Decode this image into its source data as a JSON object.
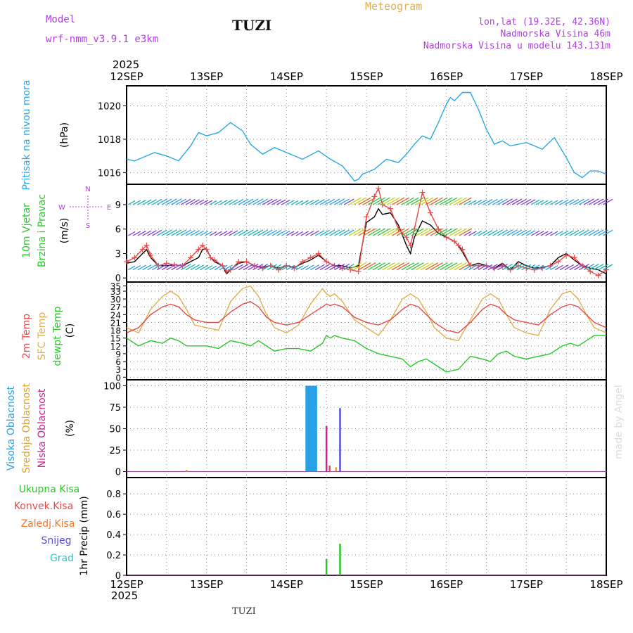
{
  "header": {
    "model_label": "Model",
    "model_name": "wrf-nmm_v3.9.1 e3km",
    "station": "TUZI",
    "meteogram": "Meteogram",
    "lonlat": "lon,lat (19.32E, 42.36N)",
    "altitude": "Nadmorska Visina 46m",
    "model_altitude": "Nadmorska Visina u modelu 143.131m",
    "watermark": "made by Angel",
    "footer_station": "TUZI"
  },
  "colors": {
    "pressure": "#2aa8e6",
    "tmax": "#e0b050",
    "t2m": "#e84848",
    "dewpt": "#28c828",
    "wind_speed": "#000000",
    "gust": "#e84848",
    "high_cloud": "#28a0e6",
    "mid_cloud": "#e0a030",
    "low_cloud": "#d22090",
    "total_precip": "#28c828",
    "conv_precip": "#e84848",
    "frozen_precip": "#f07828",
    "snow": "#5050e0",
    "hail": "#28c8c8",
    "wind_label": "#b040e0"
  },
  "time_axis": {
    "year": "2025",
    "days": [
      "12SEP",
      "13SEP",
      "14SEP",
      "15SEP",
      "16SEP",
      "17SEP",
      "18SEP"
    ]
  },
  "chart_data": [
    {
      "type": "line",
      "id": "pressure",
      "ylabel_lines": [
        "Pritisak na nivou mora",
        "(hPa)"
      ],
      "ticks": [
        "1016",
        "1018",
        "1020"
      ],
      "ylim": [
        1015.3,
        1021.2
      ],
      "x_days": [
        0,
        0.1,
        0.2,
        0.35,
        0.5,
        0.65,
        0.8,
        0.9,
        1.0,
        1.15,
        1.3,
        1.45,
        1.55,
        1.7,
        1.85,
        2.0,
        2.2,
        2.4,
        2.55,
        2.7,
        2.85,
        2.9,
        2.95,
        3.1,
        3.25,
        3.4,
        3.5,
        3.6,
        3.7,
        3.8,
        3.9,
        4.0,
        4.05,
        4.1,
        4.2,
        4.3,
        4.4,
        4.5,
        4.6,
        4.7,
        4.8,
        5.0,
        5.2,
        5.35,
        5.5,
        5.6,
        5.7,
        5.8,
        5.9,
        6.0
      ],
      "series": [
        {
          "name": "pressure",
          "color_key": "pressure",
          "values": [
            1016.8,
            1016.7,
            1016.9,
            1017.2,
            1017.0,
            1016.7,
            1017.6,
            1018.4,
            1018.2,
            1018.4,
            1019.0,
            1018.5,
            1017.7,
            1017.1,
            1017.5,
            1017.2,
            1016.8,
            1017.3,
            1016.8,
            1016.4,
            1015.5,
            1015.6,
            1015.9,
            1016.2,
            1016.8,
            1016.6,
            1017.1,
            1017.7,
            1018.2,
            1018.0,
            1019.0,
            1020.1,
            1020.5,
            1020.3,
            1020.8,
            1020.8,
            1019.8,
            1018.6,
            1017.7,
            1017.9,
            1017.6,
            1017.8,
            1017.4,
            1018.1,
            1016.9,
            1016.0,
            1015.7,
            1016.1,
            1016.1,
            1015.9
          ]
        }
      ]
    },
    {
      "type": "line",
      "id": "wind",
      "ylabel_lines": [
        "10m Vjetar",
        "Brzina i Pravac",
        "(m/s)"
      ],
      "compass": [
        "N",
        "W",
        "E",
        "S"
      ],
      "ticks": [
        "0",
        "3",
        "6",
        "9"
      ],
      "ylim": [
        -0.5,
        11.5
      ],
      "barb_levels": [
        1.0,
        5.2,
        9.0
      ],
      "x_days": [
        0,
        0.1,
        0.2,
        0.25,
        0.3,
        0.4,
        0.5,
        0.6,
        0.7,
        0.8,
        0.9,
        0.95,
        1.0,
        1.05,
        1.1,
        1.2,
        1.25,
        1.3,
        1.4,
        1.5,
        1.6,
        1.7,
        1.8,
        1.9,
        2.0,
        2.1,
        2.2,
        2.3,
        2.4,
        2.5,
        2.6,
        2.7,
        2.8,
        2.9,
        3.0,
        3.1,
        3.15,
        3.2,
        3.3,
        3.4,
        3.5,
        3.55,
        3.6,
        3.7,
        3.8,
        3.9,
        4.0,
        4.1,
        4.15,
        4.2,
        4.3,
        4.4,
        4.5,
        4.6,
        4.7,
        4.8,
        4.9,
        5.0,
        5.1,
        5.2,
        5.3,
        5.4,
        5.5,
        5.6,
        5.7,
        5.8,
        5.9,
        6.0
      ],
      "series": [
        {
          "name": "wind speed",
          "color_key": "wind_speed",
          "values": [
            1.8,
            2.0,
            3.0,
            3.5,
            2.5,
            1.5,
            1.5,
            1.6,
            1.5,
            2.0,
            2.5,
            3.5,
            3.6,
            2.5,
            2.0,
            1.5,
            0.5,
            1.0,
            1.8,
            2.0,
            1.5,
            1.3,
            1.5,
            1.2,
            1.5,
            1.3,
            1.8,
            2.2,
            2.8,
            2.0,
            1.5,
            1.5,
            1.2,
            1.5,
            6.8,
            7.5,
            8.5,
            7.8,
            8.0,
            6.5,
            4.0,
            3.0,
            5.0,
            7.0,
            6.5,
            5.5,
            5.0,
            4.5,
            4.0,
            3.2,
            1.5,
            1.8,
            1.5,
            1.2,
            1.8,
            1.0,
            2.0,
            1.5,
            1.2,
            1.3,
            1.5,
            2.5,
            3.0,
            2.2,
            1.5,
            1.2,
            1.0,
            0.5
          ]
        },
        {
          "name": "gust",
          "color_key": "gust",
          "values": [
            2.0,
            2.5,
            3.5,
            4.0,
            2.8,
            1.5,
            1.8,
            1.6,
            1.5,
            2.5,
            3.5,
            4.0,
            3.5,
            2.5,
            2.2,
            1.5,
            0.8,
            1.0,
            2.0,
            2.0,
            1.5,
            1.2,
            1.5,
            1.0,
            1.5,
            1.2,
            2.0,
            2.5,
            3.0,
            2.0,
            1.5,
            1.2,
            1.0,
            0.8,
            7.5,
            10.0,
            11.0,
            9.0,
            8.5,
            6.0,
            5.0,
            4.0,
            6.0,
            10.5,
            8.0,
            6.0,
            5.0,
            4.5,
            4.0,
            3.5,
            1.5,
            1.5,
            1.5,
            1.2,
            1.5,
            1.0,
            1.5,
            1.2,
            1.0,
            1.2,
            1.5,
            2.0,
            2.8,
            2.5,
            1.5,
            0.8,
            0.3,
            1.0
          ]
        }
      ]
    },
    {
      "type": "line",
      "id": "temperature",
      "ylabel_lines": [
        "2m Temp",
        "SFC Temp",
        "dewpt Temp",
        "(C)"
      ],
      "ticks": [
        "0",
        "3",
        "6",
        "9",
        "12",
        "15",
        "18",
        "21",
        "24",
        "27",
        "30",
        "33",
        "35"
      ],
      "ylim": [
        -1,
        36.5
      ],
      "x_days": [
        0,
        0.15,
        0.3,
        0.45,
        0.55,
        0.65,
        0.75,
        0.85,
        1.0,
        1.15,
        1.3,
        1.45,
        1.55,
        1.65,
        1.75,
        1.85,
        2.0,
        2.15,
        2.3,
        2.45,
        2.5,
        2.55,
        2.6,
        2.7,
        2.85,
        3.0,
        3.15,
        3.3,
        3.45,
        3.55,
        3.65,
        3.75,
        3.85,
        4.0,
        4.15,
        4.3,
        4.45,
        4.55,
        4.65,
        4.75,
        4.85,
        5.0,
        5.15,
        5.3,
        5.45,
        5.55,
        5.65,
        5.75,
        5.85,
        6.0
      ],
      "series": [
        {
          "name": "SFC Temp",
          "color_key": "tmax",
          "values": [
            19,
            17,
            26,
            31,
            33,
            31,
            26,
            20,
            19,
            18,
            29,
            34,
            35,
            31,
            24,
            19,
            17,
            20,
            28,
            34,
            32,
            31,
            32,
            29,
            22,
            19,
            16,
            22,
            30,
            32,
            30,
            25,
            19,
            15,
            14,
            22,
            30,
            32,
            30,
            24,
            19,
            17,
            16,
            26,
            32,
            33,
            30,
            24,
            19,
            17
          ]
        },
        {
          "name": "2m Temp",
          "color_key": "t2m",
          "values": [
            17,
            19,
            24,
            27,
            28,
            27,
            24,
            22,
            21,
            21,
            25,
            28,
            29,
            27,
            23,
            21,
            20,
            21,
            24,
            27,
            28,
            27.5,
            28,
            27,
            23,
            21,
            20,
            22,
            26,
            28,
            27,
            24,
            21,
            18,
            17,
            21,
            26,
            28,
            27,
            24,
            22,
            21,
            20,
            24,
            27,
            28,
            27,
            24,
            21,
            19
          ]
        },
        {
          "name": "dewpt Temp",
          "color_key": "dewpt",
          "values": [
            15,
            12,
            14,
            13,
            15,
            14,
            12,
            12,
            12,
            11,
            14,
            13,
            12,
            14,
            12,
            10,
            11,
            11,
            10,
            13,
            16,
            15,
            16,
            15,
            14,
            11,
            9,
            8,
            7,
            4,
            6,
            7,
            5,
            2,
            3,
            8,
            7,
            6,
            9,
            10,
            8,
            7,
            8,
            9,
            12,
            13,
            12,
            14,
            16,
            16
          ]
        }
      ]
    },
    {
      "type": "bar",
      "id": "cloud",
      "ylabel_lines": [
        "Visoka Oblacnost",
        "Srednja Oblacnost",
        "Niska Oblacnost",
        "(%)"
      ],
      "ticks": [
        "0",
        "25",
        "50",
        "75",
        "100"
      ],
      "ylim": [
        -7,
        107
      ],
      "series": [
        {
          "name": "Visoka Oblacnost",
          "color_key": "high_cloud",
          "x_days": [
            2.25,
            2.27,
            2.29,
            2.31,
            2.33,
            2.35,
            2.37
          ],
          "values": [
            100,
            100,
            100,
            100,
            100,
            100,
            100
          ]
        },
        {
          "name": "Srednja Oblacnost",
          "color_key": "mid_cloud",
          "x_days": [
            0.75,
            2.62
          ],
          "values": [
            2,
            5
          ]
        },
        {
          "name": "Niska Oblacnost",
          "color_key": "low_cloud",
          "x_days": [
            2.5
          ],
          "values": [
            53
          ]
        },
        {
          "name": "red",
          "color_key": "t2m",
          "x_days": [
            2.54
          ],
          "values": [
            7
          ]
        },
        {
          "name": "blue",
          "color_key": "snow",
          "x_days": [
            2.67
          ],
          "values": [
            74
          ]
        }
      ]
    },
    {
      "type": "bar",
      "id": "precip",
      "ylabel_lines": [
        "1hr Precip (mm)"
      ],
      "legend": [
        "Ukupna Kisa",
        "Konvek.Kisa",
        "Zaledj.Kisa",
        "Snijeg",
        "Grad"
      ],
      "ticks": [
        "0",
        "0.2",
        "0.4",
        "0.6",
        "0.8"
      ],
      "ylim": [
        0,
        0.96
      ],
      "series": [
        {
          "name": "Ukupna Kisa",
          "color_key": "total_precip",
          "x_days": [
            2.5,
            2.67
          ],
          "values": [
            0.16,
            0.31
          ]
        },
        {
          "name": "Konvek.Kisa",
          "color_key": "conv_precip",
          "x_days": [
            2.64
          ],
          "values": [
            0.01
          ]
        }
      ]
    }
  ]
}
